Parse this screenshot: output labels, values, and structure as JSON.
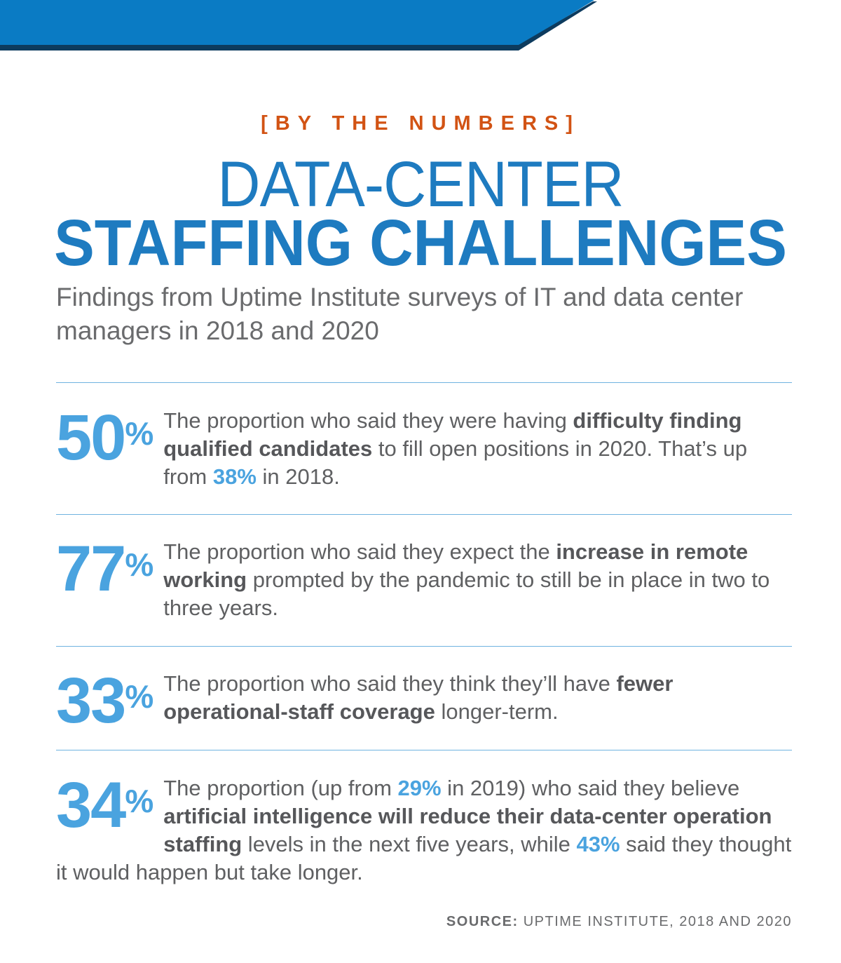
{
  "banner": {
    "color_primary": "#0a7bc4",
    "color_edge": "#0d3b5e"
  },
  "header": {
    "kicker": "[BY THE NUMBERS]",
    "title_line1": "DATA-CENTER",
    "title_line2": "STAFFING CHALLENGES",
    "subtitle": "Findings from Uptime Institute surveys of IT and data center managers in 2018 and 2020"
  },
  "stats": [
    {
      "number": "50",
      "percent": "%",
      "t1": "The proportion who said they were having ",
      "b1": "difficulty finding qualified candidates",
      "t2": " to fill open positions in 2020. That’s up from ",
      "h1": "38%",
      "t3": " in 2018."
    },
    {
      "number": "77",
      "percent": "%",
      "t1": "The proportion who said they expect the ",
      "b1": "increase in remote working",
      "t2": " prompted by the pandemic to still be in place in two to three years."
    },
    {
      "number": "33",
      "percent": "%",
      "t1": "The proportion who said they think they’ll have ",
      "b1": "fewer operational-staff coverage",
      "t2": " longer-term."
    },
    {
      "number": "34",
      "percent": "%",
      "t1": "The proportion (up from ",
      "h1": "29%",
      "t2": " in 2019) who said they believe ",
      "b1": "artificial intelligence will reduce their data-center operation staffing",
      "t3": " levels in the next five years, while ",
      "h2": "43%",
      "t4": " said they thought it would happen but take longer."
    }
  ],
  "source": {
    "label": "SOURCE:",
    "text": " UPTIME INSTITUTE, 2018 AND 2020"
  },
  "colors": {
    "accent_blue": "#4aa3df",
    "title_blue": "#1e7bc0",
    "kicker_orange": "#d25314",
    "body_gray": "#5f6062"
  }
}
